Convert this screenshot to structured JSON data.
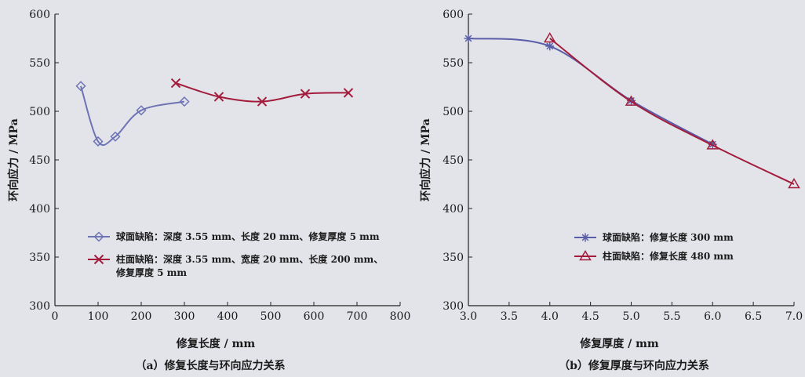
{
  "chart_data": [
    {
      "type": "line",
      "caption": "（a）修复长度与环向应力关系",
      "xlabel": "修复长度 / mm",
      "ylabel": "环向应力 / MPa",
      "xlim": [
        0,
        800
      ],
      "ylim": [
        300,
        600
      ],
      "xticks": [
        0,
        100,
        200,
        300,
        400,
        500,
        600,
        700,
        800
      ],
      "yticks": [
        300,
        350,
        400,
        450,
        500,
        550,
        600
      ],
      "grid": false,
      "legend_position": "lower-left",
      "series": [
        {
          "name": "球面缺陷：深度 3.55 mm、长度 20 mm、修复厚度 5 mm",
          "marker": "diamond",
          "color": "#6e73b4",
          "x": [
            60,
            100,
            140,
            200,
            300
          ],
          "y": [
            526,
            469,
            474,
            501,
            510
          ]
        },
        {
          "name": "柱面缺陷：深度 3.55 mm、宽度 20 mm、长度 200 mm、修复厚度 5 mm",
          "marker": "x",
          "color": "#a31c3c",
          "x": [
            280,
            380,
            480,
            580,
            680
          ],
          "y": [
            529,
            515,
            510,
            518,
            519
          ]
        }
      ]
    },
    {
      "type": "line",
      "caption": "（b）修复厚度与环向应力关系",
      "xlabel": "修复厚度 / mm",
      "ylabel": "环向应力 / MPa",
      "xlim": [
        3.0,
        7.0
      ],
      "ylim": [
        300,
        600
      ],
      "xticks": [
        "3.0",
        "3.5",
        "4.0",
        "4.5",
        "5.0",
        "5.5",
        "6.0",
        "6.5",
        "7.0"
      ],
      "yticks": [
        300,
        350,
        400,
        450,
        500,
        550,
        600
      ],
      "grid": false,
      "legend_position": "lower-left",
      "series": [
        {
          "name": "球面缺陷：修复长度 300 mm",
          "marker": "asterisk",
          "color": "#5a5ea8",
          "x": [
            3.0,
            4.0,
            5.0,
            6.0
          ],
          "y": [
            575,
            567,
            511,
            466
          ]
        },
        {
          "name": "柱面缺陷：修复长度 480 mm",
          "marker": "triangle",
          "color": "#a31c3c",
          "x": [
            4.0,
            5.0,
            6.0,
            7.0
          ],
          "y": [
            575,
            510,
            465,
            425
          ]
        }
      ]
    }
  ]
}
